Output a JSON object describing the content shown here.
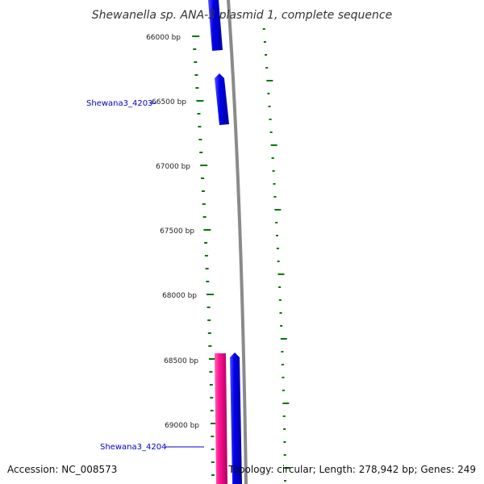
{
  "title": "Shewanella sp. ANA-3 plasmid 1, complete sequence",
  "accession": "Accession: NC_008573",
  "summary": "Topology: circular; Length: 278,942 bp; Genes: 249",
  "colors": {
    "backbone": "#888888",
    "tick": "#007700",
    "gene_forward": "#0000ee",
    "gene_reverse": "#ff1493",
    "gene_label": "#0000cc"
  },
  "position_labels": [
    "66000 bp",
    "66500 bp",
    "67000 bp",
    "67500 bp",
    "68000 bp",
    "68500 bp",
    "69000 bp"
  ],
  "gene_labels": [
    "Shewana3_4203",
    "Shewana3_4204"
  ]
}
